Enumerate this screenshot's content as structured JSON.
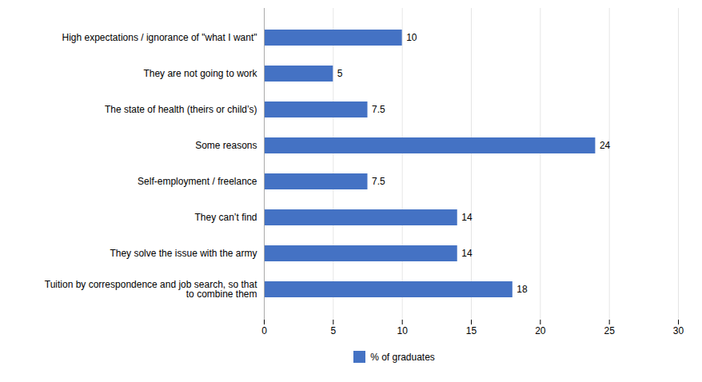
{
  "chart_data": {
    "type": "bar",
    "orientation": "horizontal",
    "categories": [
      "Tuition by correspondence and job search, so that\n    to combine them",
      "They solve the issue with the army",
      "They can’t find",
      "Self-employment / freelance",
      "Some reasons",
      "The state of health (theirs or child’s)",
      "They are not going to work",
      "High expectations / ignorance of \"what I want\""
    ],
    "series": [
      {
        "name": "% of graduates",
        "color": "#4472C4",
        "values": [
          18,
          14,
          14,
          7.5,
          24,
          7.5,
          5,
          10
        ]
      }
    ],
    "xlim": [
      0,
      30
    ],
    "xticks": [
      0,
      5,
      10,
      15,
      20,
      25,
      30
    ],
    "grid": true,
    "data_labels": true,
    "legend": "bottom"
  }
}
